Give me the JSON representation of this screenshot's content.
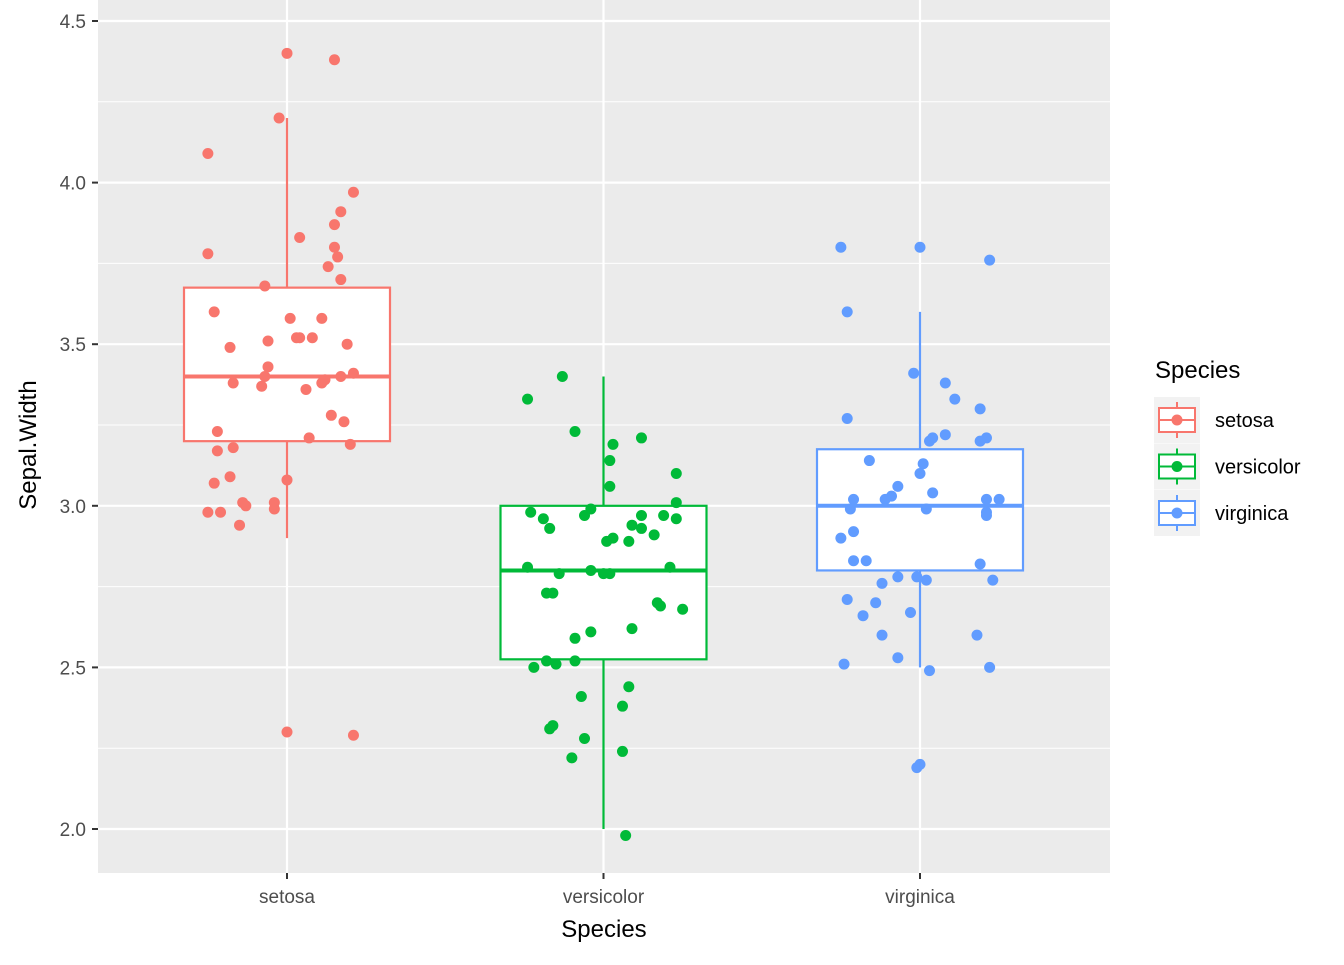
{
  "chart_data": {
    "type": "boxplot",
    "xlabel": "Species",
    "ylabel": "Sepal.Width",
    "ylim": [
      1.87,
      4.57
    ],
    "yticks": [
      "2.0",
      "2.5",
      "3.0",
      "3.5",
      "4.0",
      "4.5"
    ],
    "categories": [
      "setosa",
      "versicolor",
      "virginica"
    ],
    "grid": true,
    "legend": {
      "title": "Species",
      "position": "right",
      "entries": [
        "setosa",
        "versicolor",
        "virginica"
      ]
    },
    "colors": {
      "setosa": "#F8766D",
      "versicolor": "#00BA38",
      "virginica": "#619CFF"
    },
    "boxes": [
      {
        "category": "setosa",
        "whisker_low": 2.9,
        "q1": 3.2,
        "median": 3.4,
        "q3": 3.675,
        "whisker_high": 4.2
      },
      {
        "category": "versicolor",
        "whisker_low": 2.0,
        "q1": 2.525,
        "median": 2.8,
        "q3": 3.0,
        "whisker_high": 3.4
      },
      {
        "category": "virginica",
        "whisker_low": 2.5,
        "q1": 2.8,
        "median": 3.0,
        "q3": 3.175,
        "whisker_high": 3.6
      }
    ],
    "points": {
      "setosa": [
        [
          0,
          4.4
        ],
        [
          0.15,
          4.38
        ],
        [
          -0.025,
          4.2
        ],
        [
          -0.25,
          4.09
        ],
        [
          0.21,
          3.97
        ],
        [
          0.17,
          3.91
        ],
        [
          0.15,
          3.87
        ],
        [
          0.04,
          3.83
        ],
        [
          -0.25,
          3.78
        ],
        [
          0.15,
          3.8
        ],
        [
          0.16,
          3.77
        ],
        [
          0.13,
          3.74
        ],
        [
          0.17,
          3.7
        ],
        [
          -0.07,
          3.68
        ],
        [
          -0.23,
          3.6
        ],
        [
          0.01,
          3.58
        ],
        [
          0.11,
          3.58
        ],
        [
          0.03,
          3.52
        ],
        [
          0.04,
          3.52
        ],
        [
          0.08,
          3.52
        ],
        [
          0.19,
          3.5
        ],
        [
          -0.18,
          3.49
        ],
        [
          -0.06,
          3.51
        ],
        [
          -0.06,
          3.43
        ],
        [
          -0.07,
          3.4
        ],
        [
          -0.17,
          3.38
        ],
        [
          -0.08,
          3.37
        ],
        [
          0.06,
          3.36
        ],
        [
          0.11,
          3.38
        ],
        [
          0.12,
          3.39
        ],
        [
          0.17,
          3.4
        ],
        [
          0.21,
          3.41
        ],
        [
          0.14,
          3.28
        ],
        [
          0.18,
          3.26
        ],
        [
          -0.22,
          3.23
        ],
        [
          0.07,
          3.21
        ],
        [
          0.2,
          3.19
        ],
        [
          -0.17,
          3.18
        ],
        [
          -0.22,
          3.17
        ],
        [
          -0.18,
          3.09
        ],
        [
          -0.23,
          3.07
        ],
        [
          0,
          3.08
        ],
        [
          -0.14,
          3.01
        ],
        [
          -0.13,
          3.0
        ],
        [
          -0.04,
          3.01
        ],
        [
          -0.04,
          2.99
        ],
        [
          -0.25,
          2.98
        ],
        [
          -0.21,
          2.98
        ],
        [
          -0.15,
          2.94
        ],
        [
          0,
          2.3
        ],
        [
          0.21,
          2.29
        ]
      ],
      "versicolor": [
        [
          -0.13,
          3.4
        ],
        [
          -0.24,
          3.33
        ],
        [
          -0.09,
          3.23
        ],
        [
          0.12,
          3.21
        ],
        [
          0.03,
          3.19
        ],
        [
          0.02,
          3.14
        ],
        [
          0.23,
          3.1
        ],
        [
          0.02,
          3.06
        ],
        [
          0.23,
          3.01
        ],
        [
          -0.23,
          2.98
        ],
        [
          -0.19,
          2.96
        ],
        [
          -0.06,
          2.97
        ],
        [
          -0.04,
          2.99
        ],
        [
          0.12,
          2.97
        ],
        [
          0.19,
          2.97
        ],
        [
          0.23,
          2.96
        ],
        [
          -0.17,
          2.93
        ],
        [
          0.09,
          2.94
        ],
        [
          0.12,
          2.93
        ],
        [
          0.16,
          2.91
        ],
        [
          0.03,
          2.9
        ],
        [
          0.01,
          2.89
        ],
        [
          0.08,
          2.89
        ],
        [
          -0.24,
          2.81
        ],
        [
          -0.14,
          2.79
        ],
        [
          -0.04,
          2.8
        ],
        [
          0,
          2.79
        ],
        [
          0.02,
          2.79
        ],
        [
          0.21,
          2.81
        ],
        [
          -0.18,
          2.73
        ],
        [
          -0.16,
          2.73
        ],
        [
          0.17,
          2.7
        ],
        [
          0.18,
          2.69
        ],
        [
          0.25,
          2.68
        ],
        [
          0.09,
          2.62
        ],
        [
          -0.04,
          2.61
        ],
        [
          -0.09,
          2.59
        ],
        [
          -0.18,
          2.52
        ],
        [
          -0.09,
          2.52
        ],
        [
          -0.22,
          2.5
        ],
        [
          -0.15,
          2.51
        ],
        [
          0.08,
          2.44
        ],
        [
          -0.07,
          2.41
        ],
        [
          0.06,
          2.38
        ],
        [
          -0.16,
          2.32
        ],
        [
          -0.17,
          2.31
        ],
        [
          -0.06,
          2.28
        ],
        [
          0.06,
          2.24
        ],
        [
          -0.1,
          2.22
        ],
        [
          0.07,
          1.98
        ]
      ],
      "virginica": [
        [
          -0.25,
          3.8
        ],
        [
          0,
          3.8
        ],
        [
          0.22,
          3.76
        ],
        [
          -0.23,
          3.6
        ],
        [
          -0.02,
          3.41
        ],
        [
          0.08,
          3.38
        ],
        [
          0.11,
          3.33
        ],
        [
          -0.23,
          3.27
        ],
        [
          0.19,
          3.3
        ],
        [
          0.08,
          3.22
        ],
        [
          0.03,
          3.2
        ],
        [
          0.04,
          3.21
        ],
        [
          0.21,
          3.21
        ],
        [
          0.19,
          3.2
        ],
        [
          -0.16,
          3.14
        ],
        [
          0.01,
          3.13
        ],
        [
          0,
          3.1
        ],
        [
          -0.07,
          3.06
        ],
        [
          0.04,
          3.04
        ],
        [
          -0.21,
          3.02
        ],
        [
          -0.11,
          3.02
        ],
        [
          -0.09,
          3.03
        ],
        [
          0.21,
          3.02
        ],
        [
          0.25,
          3.02
        ],
        [
          -0.22,
          2.99
        ],
        [
          0.02,
          2.99
        ],
        [
          0.21,
          2.98
        ],
        [
          0.21,
          2.97
        ],
        [
          -0.25,
          2.9
        ],
        [
          -0.21,
          2.92
        ],
        [
          -0.21,
          2.83
        ],
        [
          -0.17,
          2.83
        ],
        [
          0.19,
          2.82
        ],
        [
          -0.07,
          2.78
        ],
        [
          -0.01,
          2.78
        ],
        [
          0.02,
          2.77
        ],
        [
          -0.12,
          2.76
        ],
        [
          0.23,
          2.77
        ],
        [
          -0.23,
          2.71
        ],
        [
          -0.14,
          2.7
        ],
        [
          -0.18,
          2.66
        ],
        [
          -0.03,
          2.67
        ],
        [
          -0.12,
          2.6
        ],
        [
          0.18,
          2.6
        ],
        [
          -0.07,
          2.53
        ],
        [
          -0.24,
          2.51
        ],
        [
          0.22,
          2.5
        ],
        [
          0.03,
          2.49
        ],
        [
          0,
          2.2
        ],
        [
          -0.01,
          2.19
        ]
      ]
    }
  }
}
